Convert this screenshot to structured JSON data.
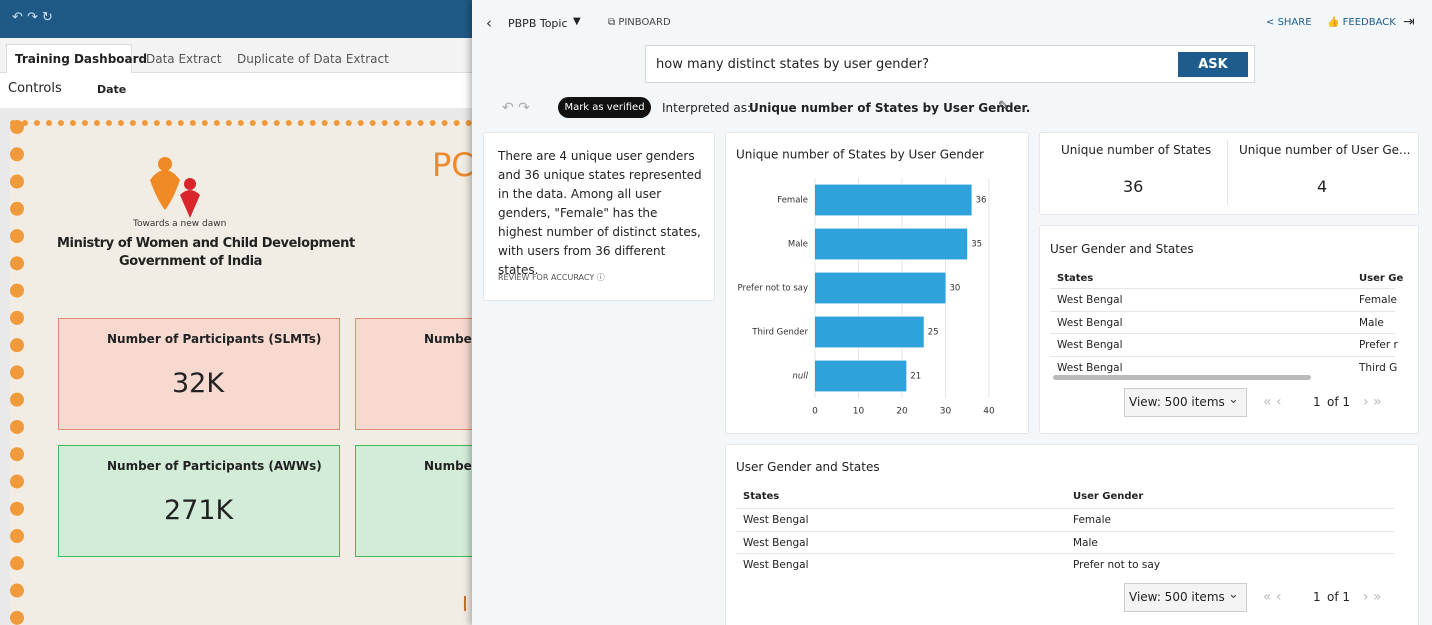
{
  "dashboard": {
    "tabs": [
      "Training Dashboard",
      "Data Extract",
      "Duplicate of Data Extract"
    ],
    "controls": "Controls",
    "date": "Date",
    "banner": {
      "tagline": "Towards a new dawn",
      "ministry": "Ministry of Women and Child Development",
      "government": "Government of India",
      "heading": "PC",
      "footer": "I"
    },
    "kpis": [
      {
        "label": "Number of Participants (SLMTs)",
        "value": "32K"
      },
      {
        "label": "Number"
      },
      {
        "label": "Number of Participants (AWWs)",
        "value": "271K"
      },
      {
        "label": "Number"
      }
    ]
  },
  "qpanel": {
    "topic": "PBPB Topic",
    "pinboard": "PINBOARD",
    "share": "SHARE",
    "feedback": "FEEDBACK",
    "question": "how many distinct states by user gender?",
    "ask": "ASK",
    "verify": "Mark as verified",
    "interpreted_prefix": "Interpreted as:",
    "interpreted": "Unique number of States by User Gender.",
    "summary": "There are 4 unique user genders and 36 unique states represented in the data. Among all user genders, \"Female\" has the highest number of distinct states, with users from 36 different states.",
    "review": "REVIEW FOR ACCURACY",
    "kpis": [
      {
        "label": "Unique number of States",
        "value": 36
      },
      {
        "label": "Unique number of User Ge...",
        "value": 4
      }
    ],
    "table_small": {
      "title": "User Gender and States",
      "headers": [
        "States",
        "User Ge"
      ],
      "rows": [
        [
          "West Bengal",
          "Female"
        ],
        [
          "West Bengal",
          "Male"
        ],
        [
          "West Bengal",
          "Prefer r"
        ],
        [
          "West Bengal",
          "Third G"
        ]
      ],
      "view": "View: 500 items",
      "page": "1",
      "of": "of 1"
    },
    "table_large": {
      "title": "User Gender and States",
      "headers": [
        "States",
        "User Gender"
      ],
      "rows": [
        [
          "West Bengal",
          "Female"
        ],
        [
          "West Bengal",
          "Male"
        ],
        [
          "West Bengal",
          "Prefer not to say"
        ]
      ],
      "view": "View: 500 items",
      "page": "1",
      "of": "of 1"
    }
  },
  "chart_data": {
    "type": "bar",
    "orientation": "horizontal",
    "title": "Unique number of States by User Gender",
    "categories": [
      "Female",
      "Male",
      "Prefer not to say",
      "Third Gender",
      "null"
    ],
    "values": [
      36,
      35,
      30,
      25,
      21
    ],
    "color": "#2ea3db",
    "xlim": [
      0,
      40
    ],
    "xticks": [
      0,
      10,
      20,
      30,
      40
    ],
    "grid": true
  }
}
